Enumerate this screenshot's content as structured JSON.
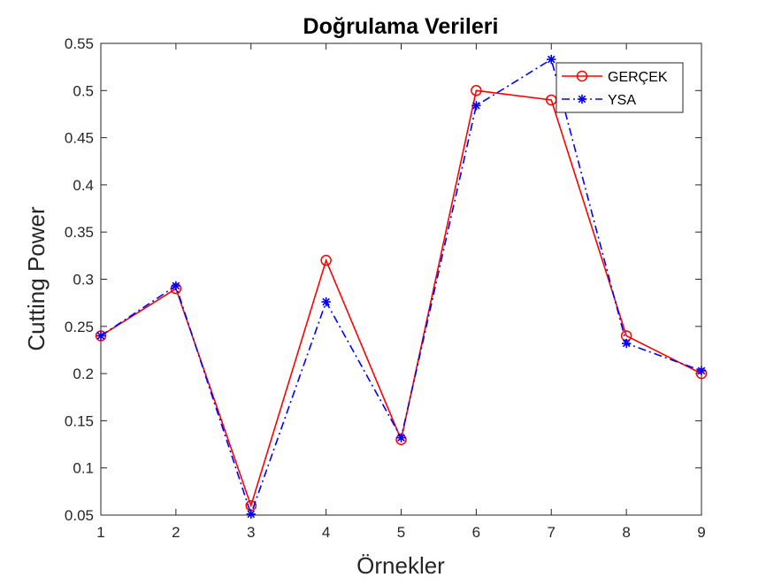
{
  "chart_data": {
    "type": "line",
    "title": "Doğrulama Verileri",
    "xlabel": "Örnekler",
    "ylabel": "Cutting Power",
    "x": [
      1,
      2,
      3,
      4,
      5,
      6,
      7,
      8,
      9
    ],
    "xlim": [
      1,
      9
    ],
    "ylim": [
      0.05,
      0.55
    ],
    "xticks": [
      1,
      2,
      3,
      4,
      5,
      6,
      7,
      8,
      9
    ],
    "yticks": [
      0.05,
      0.1,
      0.15,
      0.2,
      0.25,
      0.3,
      0.35,
      0.4,
      0.45,
      0.5,
      0.55
    ],
    "ytick_labels": [
      "0.05",
      "0.1",
      "0.15",
      "0.2",
      "0.25",
      "0.3",
      "0.35",
      "0.4",
      "0.45",
      "0.5",
      "0.55"
    ],
    "grid": false,
    "legend_position": "top-right",
    "series": [
      {
        "name": "GERÇEK",
        "values": [
          0.24,
          0.29,
          0.06,
          0.32,
          0.13,
          0.5,
          0.49,
          0.24,
          0.2
        ],
        "color": "#ff0000",
        "line_style": "solid",
        "marker": "circle"
      },
      {
        "name": "YSA",
        "values": [
          0.24,
          0.293,
          0.051,
          0.276,
          0.132,
          0.484,
          0.533,
          0.232,
          0.203
        ],
        "color": "#0000ff",
        "line_style": "dash-dot",
        "marker": "asterisk"
      }
    ]
  }
}
